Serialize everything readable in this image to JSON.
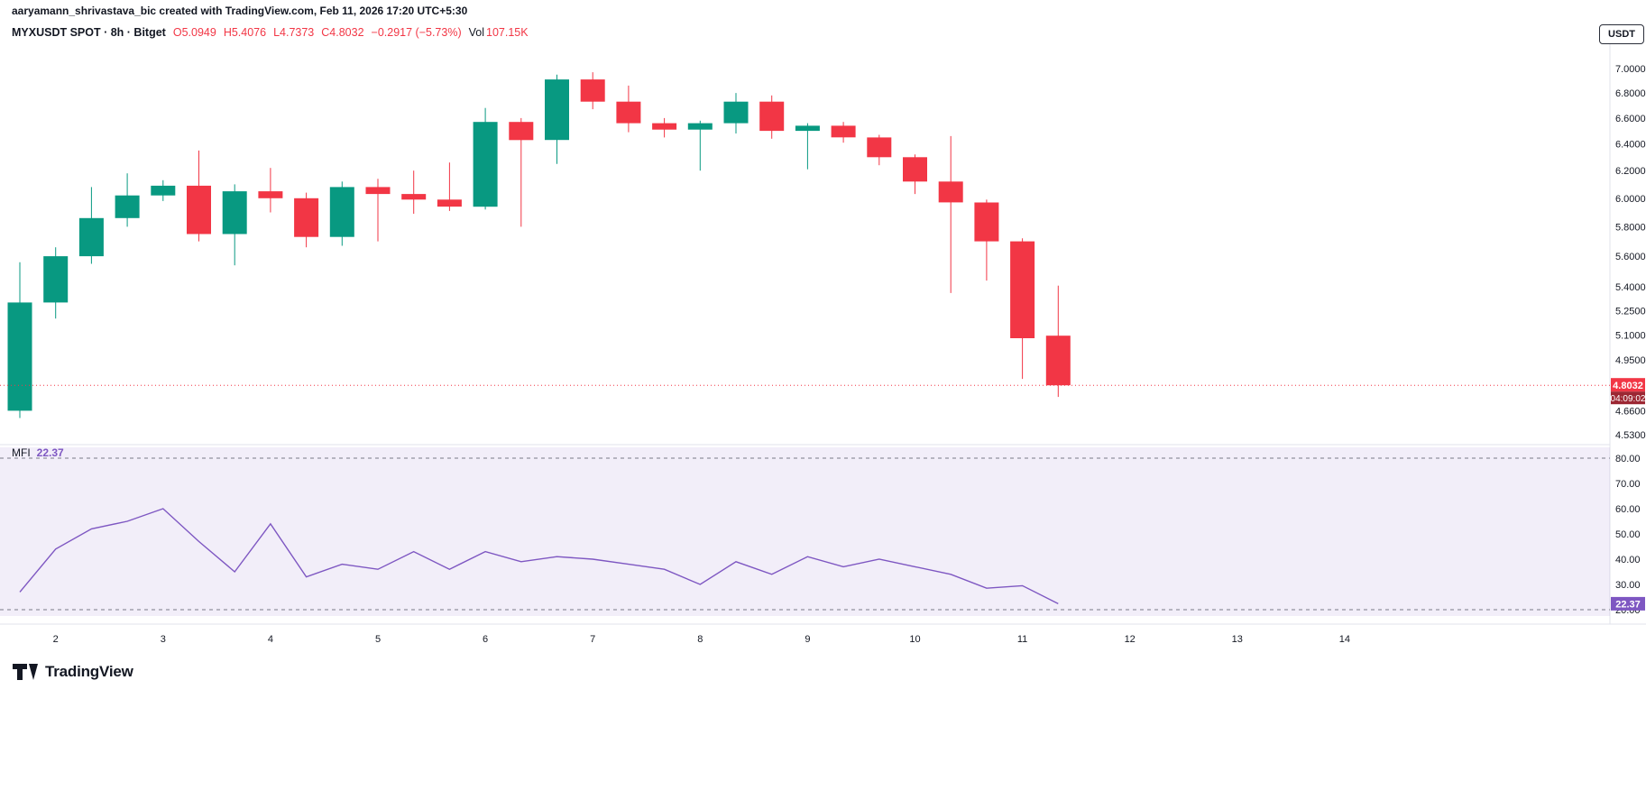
{
  "attribution": "aaryamann_shrivastava_bic created with TradingView.com, Feb 11, 2026 17:20 UTC+5:30",
  "header": {
    "symbol": "MYXUSDT SPOT · 8h · Bitget",
    "ohlc": [
      "O5.0949",
      "H5.4076",
      "L4.7373",
      "C4.8032"
    ],
    "change": "−0.2917 (−5.73%)",
    "volume_label": "Vol",
    "volume_value": "107.15K"
  },
  "currency_button_label": "USDT",
  "watermark": "TradingView",
  "colors": {
    "up": "#089981",
    "down": "#F23645",
    "down_dark": "#9C2733",
    "mfi_line": "#7E57C2",
    "band_fill": "rgba(126,87,194,0.10)",
    "band_line": "#787B86",
    "axis_text": "#131722",
    "separator": "#E0E3EB"
  },
  "chart_data": {
    "type": "candlestick",
    "title": "MYXUSDT SPOT · 8h · Bitget",
    "price_scale": "log",
    "last_price": "4.8032",
    "countdown": "04:09:02",
    "price_axis_ticks": [
      "7.0000",
      "6.8000",
      "6.6000",
      "6.4000",
      "6.2000",
      "6.0000",
      "5.8000",
      "5.6000",
      "5.4000",
      "5.2500",
      "5.1000",
      "4.9500",
      "4.6600",
      "4.5300"
    ],
    "time_axis_labels": [
      {
        "label": "2",
        "slot": 1
      },
      {
        "label": "3",
        "slot": 4
      },
      {
        "label": "4",
        "slot": 7
      },
      {
        "label": "5",
        "slot": 10
      },
      {
        "label": "6",
        "slot": 13
      },
      {
        "label": "7",
        "slot": 16
      },
      {
        "label": "8",
        "slot": 19
      },
      {
        "label": "9",
        "slot": 22
      },
      {
        "label": "10",
        "slot": 25
      },
      {
        "label": "11",
        "slot": 28
      },
      {
        "label": "12",
        "slot": 31
      },
      {
        "label": "13",
        "slot": 34
      },
      {
        "label": "14",
        "slot": 37
      }
    ],
    "candles": [
      [
        4.66,
        5.56,
        4.62,
        5.3
      ],
      [
        5.3,
        5.66,
        5.2,
        5.6
      ],
      [
        5.6,
        6.08,
        5.55,
        5.86
      ],
      [
        5.86,
        6.18,
        5.8,
        6.02
      ],
      [
        6.02,
        6.13,
        5.98,
        6.09
      ],
      [
        6.09,
        6.35,
        5.7,
        5.75
      ],
      [
        5.75,
        6.1,
        5.54,
        6.05
      ],
      [
        6.05,
        6.22,
        5.9,
        6.0
      ],
      [
        6.0,
        6.04,
        5.66,
        5.73
      ],
      [
        5.73,
        6.12,
        5.67,
        6.08
      ],
      [
        6.08,
        6.14,
        5.7,
        6.03
      ],
      [
        6.03,
        6.2,
        5.89,
        5.99
      ],
      [
        5.99,
        6.26,
        5.91,
        5.94
      ],
      [
        5.94,
        6.68,
        5.92,
        6.57
      ],
      [
        6.57,
        6.6,
        5.8,
        6.43
      ],
      [
        6.43,
        6.95,
        6.25,
        6.91
      ],
      [
        6.91,
        6.97,
        6.67,
        6.73
      ],
      [
        6.73,
        6.86,
        6.49,
        6.56
      ],
      [
        6.56,
        6.6,
        6.45,
        6.51
      ],
      [
        6.51,
        6.58,
        6.2,
        6.56
      ],
      [
        6.56,
        6.8,
        6.48,
        6.73
      ],
      [
        6.73,
        6.78,
        6.44,
        6.5
      ],
      [
        6.5,
        6.56,
        6.21,
        6.54
      ],
      [
        6.54,
        6.57,
        6.41,
        6.45
      ],
      [
        6.45,
        6.47,
        6.24,
        6.3
      ],
      [
        6.3,
        6.32,
        6.03,
        6.12
      ],
      [
        6.12,
        6.46,
        5.36,
        5.97
      ],
      [
        5.97,
        5.99,
        5.44,
        5.7
      ],
      [
        5.7,
        5.72,
        4.84,
        5.08
      ],
      [
        5.0949,
        5.4076,
        4.7373,
        4.8032
      ]
    ],
    "indicator": {
      "name": "MFI",
      "value": "22.37",
      "upper_band": 80,
      "lower_band": 20,
      "axis_ticks": [
        "80.00",
        "70.00",
        "60.00",
        "50.00",
        "40.00",
        "30.00",
        "20.00"
      ],
      "values": [
        27,
        44,
        52,
        55,
        60,
        47,
        35,
        54,
        33,
        38,
        36,
        43,
        36,
        43,
        39,
        41,
        40,
        38,
        36,
        30,
        39,
        34,
        41,
        37,
        40,
        37,
        34,
        28.5,
        29.5,
        22.37
      ]
    }
  }
}
